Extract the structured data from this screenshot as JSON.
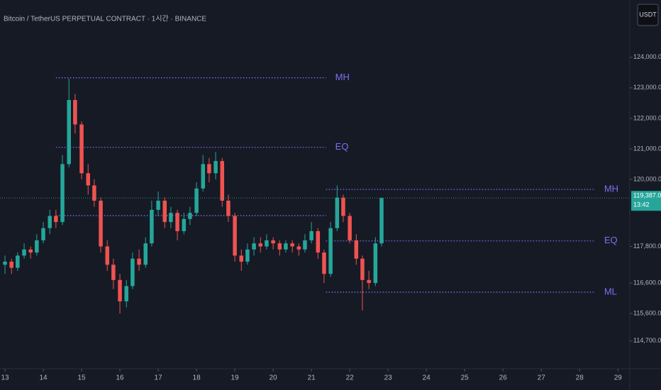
{
  "chart_data": {
    "type": "candlestick",
    "title": "Bitcoin / TetherUS PERPETUAL CONTRACT · 1시간 · BINANCE",
    "currency_button": "USDT",
    "up_color": "#26a69a",
    "down_color": "#ef5350",
    "level_color": "#7e6ff0",
    "x": [
      13.0,
      13.17,
      13.33,
      13.5,
      13.67,
      13.83,
      14.0,
      14.17,
      14.33,
      14.5,
      14.67,
      14.83,
      15.0,
      15.17,
      15.33,
      15.5,
      15.67,
      15.83,
      16.0,
      16.17,
      16.33,
      16.5,
      16.67,
      16.83,
      17.0,
      17.17,
      17.33,
      17.5,
      17.67,
      17.83,
      18.0,
      18.17,
      18.33,
      18.5,
      18.67,
      18.83,
      19.0,
      19.17,
      19.33,
      19.5,
      19.67,
      19.83,
      20.0,
      20.17,
      20.33,
      20.5,
      20.67,
      20.83,
      21.0,
      21.17,
      21.33,
      21.5,
      21.67,
      21.83,
      22.0,
      22.17,
      22.33,
      22.5,
      22.67,
      22.83
    ],
    "ohlc": [
      [
        117200,
        117500,
        116900,
        117300
      ],
      [
        117300,
        117400,
        116900,
        117100
      ],
      [
        117100,
        117600,
        117000,
        117500
      ],
      [
        117500,
        117900,
        117400,
        117700
      ],
      [
        117700,
        117800,
        117400,
        117600
      ],
      [
        117600,
        118200,
        117500,
        118000
      ],
      [
        118000,
        118600,
        117900,
        118400
      ],
      [
        118400,
        119000,
        118200,
        118800
      ],
      [
        118800,
        119000,
        118400,
        118600
      ],
      [
        118600,
        120800,
        118500,
        120500
      ],
      [
        120500,
        123300,
        120400,
        122600
      ],
      [
        122600,
        122800,
        121500,
        121800
      ],
      [
        121800,
        121900,
        120000,
        120200
      ],
      [
        120200,
        120500,
        119500,
        119800
      ],
      [
        119800,
        120000,
        119100,
        119300
      ],
      [
        119300,
        119400,
        117600,
        117800
      ],
      [
        117800,
        118000,
        117000,
        117200
      ],
      [
        117200,
        117400,
        116400,
        116700
      ],
      [
        116700,
        116900,
        115600,
        116000
      ],
      [
        116000,
        116700,
        115800,
        116500
      ],
      [
        116500,
        117600,
        116400,
        117400
      ],
      [
        117400,
        117700,
        117000,
        117200
      ],
      [
        117200,
        118100,
        117100,
        117900
      ],
      [
        117900,
        119300,
        117800,
        119000
      ],
      [
        119000,
        119600,
        118800,
        119300
      ],
      [
        119300,
        119400,
        118400,
        118600
      ],
      [
        118600,
        119100,
        118400,
        118900
      ],
      [
        118900,
        119000,
        118000,
        118300
      ],
      [
        118300,
        118900,
        118200,
        118700
      ],
      [
        118700,
        119100,
        118500,
        118900
      ],
      [
        118900,
        119900,
        118800,
        119700
      ],
      [
        119700,
        120800,
        119600,
        120500
      ],
      [
        120500,
        120700,
        119900,
        120200
      ],
      [
        120200,
        120900,
        120000,
        120600
      ],
      [
        120600,
        120700,
        119100,
        119300
      ],
      [
        119300,
        119500,
        118600,
        118800
      ],
      [
        118800,
        118900,
        117300,
        117500
      ],
      [
        117500,
        117700,
        117000,
        117300
      ],
      [
        117300,
        117900,
        117200,
        117700
      ],
      [
        117700,
        118100,
        117500,
        117900
      ],
      [
        117900,
        118100,
        117600,
        117800
      ],
      [
        117800,
        118200,
        117700,
        118000
      ],
      [
        118000,
        118100,
        117700,
        117900
      ],
      [
        117900,
        118000,
        117500,
        117700
      ],
      [
        117700,
        118000,
        117600,
        117900
      ],
      [
        117900,
        118000,
        117600,
        117800
      ],
      [
        117800,
        117900,
        117500,
        117700
      ],
      [
        117700,
        118200,
        117600,
        118000
      ],
      [
        118000,
        118600,
        117900,
        118300
      ],
      [
        118300,
        118400,
        117400,
        117600
      ],
      [
        117600,
        117700,
        116600,
        116900
      ],
      [
        116900,
        118600,
        116800,
        118400
      ],
      [
        118400,
        119800,
        118300,
        119400
      ],
      [
        119400,
        119500,
        118600,
        118800
      ],
      [
        118800,
        118900,
        117900,
        118000
      ],
      [
        118000,
        118200,
        117200,
        117400
      ],
      [
        117400,
        117500,
        115700,
        116700
      ],
      [
        116700,
        117000,
        116400,
        116600
      ],
      [
        116600,
        118100,
        116500,
        117900
      ],
      [
        117900,
        119400,
        117800,
        119387
      ]
    ],
    "ranges": [
      {
        "x": [
          14.33,
          21.38
        ],
        "lines": [
          {
            "label": "MH",
            "value": 123330
          },
          {
            "label": "EQ",
            "value": 121050
          },
          {
            "label": null,
            "value": 118810
          }
        ]
      },
      {
        "x": [
          21.38,
          28.4
        ],
        "lines": [
          {
            "label": "MH",
            "value": 119670
          },
          {
            "label": "EQ",
            "value": 117980
          },
          {
            "label": "ML",
            "value": 116300
          }
        ]
      }
    ],
    "last_price": {
      "value": 119387,
      "label": "119,387.0"
    },
    "countdown": "13:42",
    "xlim": [
      12.87,
      29.31
    ],
    "xticks": [
      13,
      14,
      15,
      16,
      17,
      18,
      19,
      20,
      21,
      22,
      23,
      24,
      25,
      26,
      27,
      28,
      29
    ],
    "ylim": [
      113790,
      125880
    ],
    "yticks": [
      {
        "value": 124000,
        "label": "124,000.0"
      },
      {
        "value": 123000,
        "label": "123,000.0"
      },
      {
        "value": 122000,
        "label": "122,000.0"
      },
      {
        "value": 121000,
        "label": "121,000.0"
      },
      {
        "value": 120000,
        "label": "120,000.0"
      },
      {
        "value": 117800,
        "label": "117,800.0"
      },
      {
        "value": 116600,
        "label": "116,600.0"
      },
      {
        "value": 115600,
        "label": "115,600.0"
      },
      {
        "value": 114700,
        "label": "114,700.0"
      }
    ]
  }
}
